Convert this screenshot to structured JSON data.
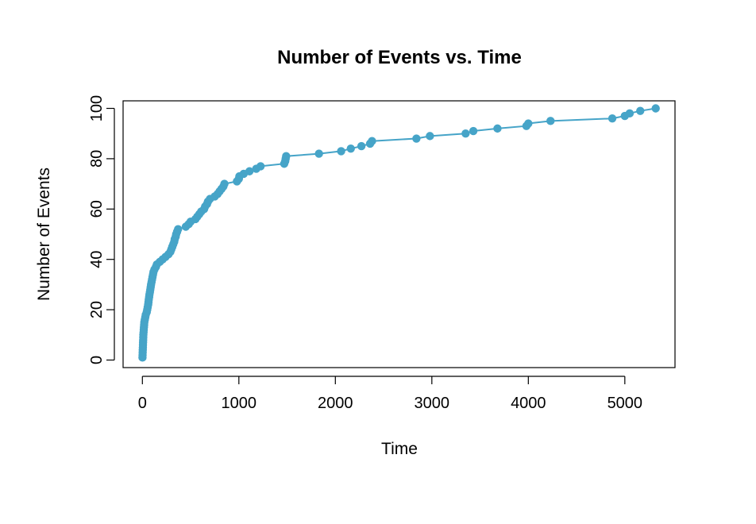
{
  "chart_data": {
    "type": "scatter",
    "title": "Number of Events vs. Time",
    "xlabel": "Time",
    "ylabel": "Number of Events",
    "xlim": [
      -200,
      5520
    ],
    "ylim": [
      -3,
      103
    ],
    "xticks": [
      0,
      1000,
      2000,
      3000,
      4000,
      5000
    ],
    "yticks": [
      0,
      20,
      40,
      60,
      80,
      100
    ],
    "x_tick_labels": [
      "0",
      "1000",
      "2000",
      "3000",
      "4000",
      "5000"
    ],
    "y_tick_labels": [
      "0",
      "20",
      "40",
      "60",
      "80",
      "100"
    ],
    "grid": false,
    "legend": "none",
    "series": [
      {
        "color": "#46a4c8",
        "lines": true,
        "points": [
          [
            1,
            1
          ],
          [
            2,
            2
          ],
          [
            3,
            3
          ],
          [
            4,
            4
          ],
          [
            5,
            5
          ],
          [
            6,
            6
          ],
          [
            7,
            7
          ],
          [
            8,
            8
          ],
          [
            9,
            9
          ],
          [
            10,
            10
          ],
          [
            12,
            11
          ],
          [
            14,
            12
          ],
          [
            16,
            13
          ],
          [
            18,
            14
          ],
          [
            20,
            15
          ],
          [
            25,
            16
          ],
          [
            30,
            17
          ],
          [
            35,
            18
          ],
          [
            45,
            19
          ],
          [
            50,
            20
          ],
          [
            55,
            21
          ],
          [
            60,
            22
          ],
          [
            63,
            23
          ],
          [
            66,
            24
          ],
          [
            70,
            25
          ],
          [
            73,
            26
          ],
          [
            78,
            27
          ],
          [
            82,
            28
          ],
          [
            86,
            29
          ],
          [
            90,
            30
          ],
          [
            95,
            31
          ],
          [
            100,
            32
          ],
          [
            105,
            33
          ],
          [
            110,
            34
          ],
          [
            115,
            35
          ],
          [
            125,
            36
          ],
          [
            140,
            37
          ],
          [
            150,
            38
          ],
          [
            180,
            39
          ],
          [
            210,
            40
          ],
          [
            240,
            41
          ],
          [
            270,
            42
          ],
          [
            290,
            43
          ],
          [
            300,
            44
          ],
          [
            310,
            45
          ],
          [
            320,
            46
          ],
          [
            330,
            47
          ],
          [
            335,
            48
          ],
          [
            345,
            49
          ],
          [
            350,
            50
          ],
          [
            360,
            51
          ],
          [
            370,
            52
          ],
          [
            450,
            53
          ],
          [
            480,
            54
          ],
          [
            500,
            55
          ],
          [
            550,
            56
          ],
          [
            570,
            57
          ],
          [
            590,
            58
          ],
          [
            610,
            59
          ],
          [
            640,
            60
          ],
          [
            650,
            61
          ],
          [
            670,
            62
          ],
          [
            680,
            63
          ],
          [
            700,
            64
          ],
          [
            750,
            65
          ],
          [
            780,
            66
          ],
          [
            800,
            67
          ],
          [
            820,
            68
          ],
          [
            840,
            69
          ],
          [
            850,
            70
          ],
          [
            980,
            71
          ],
          [
            1000,
            72
          ],
          [
            1005,
            73
          ],
          [
            1050,
            74
          ],
          [
            1110,
            75
          ],
          [
            1180,
            76
          ],
          [
            1225,
            77
          ],
          [
            1470,
            78
          ],
          [
            1480,
            79
          ],
          [
            1485,
            80
          ],
          [
            1490,
            81
          ],
          [
            1830,
            82
          ],
          [
            2060,
            83
          ],
          [
            2160,
            84
          ],
          [
            2270,
            85
          ],
          [
            2360,
            86
          ],
          [
            2380,
            87
          ],
          [
            2840,
            88
          ],
          [
            2980,
            89
          ],
          [
            3350,
            90
          ],
          [
            3430,
            91
          ],
          [
            3680,
            92
          ],
          [
            3980,
            93
          ],
          [
            4000,
            94
          ],
          [
            4230,
            95
          ],
          [
            4870,
            96
          ],
          [
            5000,
            97
          ],
          [
            5050,
            98
          ],
          [
            5160,
            99
          ],
          [
            5320,
            100
          ]
        ]
      }
    ]
  }
}
